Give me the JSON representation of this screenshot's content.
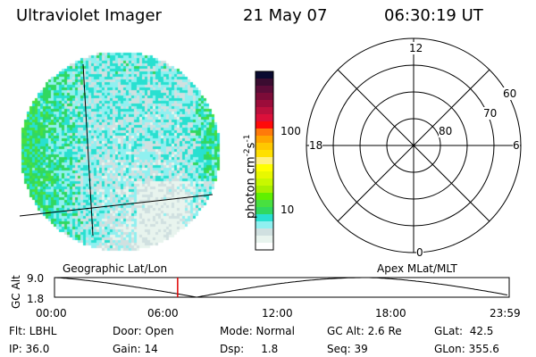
{
  "header": {
    "instrument": "Ultraviolet Imager",
    "date": "21 May 07",
    "time": "06:30:19 UT"
  },
  "colorbar": {
    "unit_label": "photon cm",
    "unit_sup1": "-2",
    "unit_mid": "s",
    "unit_sup2": "-1",
    "ticks": [
      {
        "label": "100",
        "value": 100
      },
      {
        "label": "10",
        "value": 10
      }
    ],
    "scale": "log",
    "colors": [
      "#0a0a30",
      "#3a0c30",
      "#5c0c38",
      "#7c0c38",
      "#9c0c3a",
      "#bc103c",
      "#dc103a",
      "#ff0a0a",
      "#ff7a0a",
      "#ffa500",
      "#ffc800",
      "#ffe000",
      "#fff080",
      "#ffff00",
      "#e8f800",
      "#c8f800",
      "#a8f000",
      "#60f000",
      "#48e040",
      "#30d860",
      "#28e0d0",
      "#90f0f0",
      "#d0e0e0",
      "#e8f4ee",
      "#ffffff"
    ]
  },
  "polar": {
    "labels": {
      "top": "12",
      "left": "18",
      "right": "6",
      "bottom": "0"
    },
    "rings": [
      "60",
      "70",
      "80"
    ]
  },
  "timeline": {
    "left_label": "Geographic Lat/Lon",
    "right_label": "Apex MLat/MLT",
    "ylabel": "GC Alt",
    "ymax": "9.0",
    "ymin": "1.8",
    "xticks": [
      "00:00",
      "06:00",
      "12:00",
      "18:00",
      "23:59"
    ],
    "current_time_hours": 6.5,
    "marker_color": "#e00000"
  },
  "status": {
    "flt": "Flt: LBHL",
    "ip": "IP: 36.0",
    "door": "Door: Open",
    "gain": "Gain: 14",
    "mode": "Mode: Normal",
    "dsp": "Dsp:     1.8",
    "gcalt": "GC Alt: 2.6 Re",
    "seq": "Seq: 39",
    "glat": "GLat:  42.5",
    "glon": "GLon: 355.6"
  }
}
